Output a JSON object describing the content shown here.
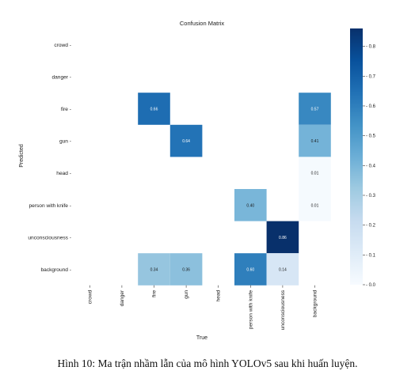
{
  "chart_data": {
    "type": "heatmap",
    "title": "Confusion Matrix",
    "xlabel": "True",
    "ylabel": "Predicted",
    "x_categories": [
      "crowd",
      "danger",
      "fire",
      "gun",
      "head",
      "person with knife",
      "unconsciousness",
      "background"
    ],
    "y_categories": [
      "crowd",
      "danger",
      "fire",
      "gun",
      "head",
      "person with knife",
      "unconsciousness",
      "background"
    ],
    "cells": [
      {
        "row": "fire",
        "col": "fire",
        "value": 0.66,
        "label": "0.66"
      },
      {
        "row": "fire",
        "col": "background",
        "value": 0.57,
        "label": "0.57"
      },
      {
        "row": "gun",
        "col": "gun",
        "value": 0.64,
        "label": "0.64"
      },
      {
        "row": "gun",
        "col": "background",
        "value": 0.41,
        "label": "0.41"
      },
      {
        "row": "head",
        "col": "background",
        "value": 0.01,
        "label": "0.01"
      },
      {
        "row": "person with knife",
        "col": "person with knife",
        "value": 0.4,
        "label": "0.40"
      },
      {
        "row": "person with knife",
        "col": "background",
        "value": 0.01,
        "label": "0.01"
      },
      {
        "row": "unconsciousness",
        "col": "unconsciousness",
        "value": 0.86,
        "label": "0.86"
      },
      {
        "row": "background",
        "col": "fire",
        "value": 0.34,
        "label": "0.34"
      },
      {
        "row": "background",
        "col": "gun",
        "value": 0.36,
        "label": "0.36"
      },
      {
        "row": "background",
        "col": "person with knife",
        "value": 0.6,
        "label": "0.60"
      },
      {
        "row": "background",
        "col": "unconsciousness",
        "value": 0.14,
        "label": "0.14"
      }
    ],
    "colorbar": {
      "range": [
        0,
        0.86
      ],
      "ticks": [
        0.0,
        0.1,
        0.2,
        0.3,
        0.4,
        0.5,
        0.6,
        0.7,
        0.8
      ],
      "tick_labels": [
        "0.0",
        "0.1",
        "0.2",
        "0.3",
        "0.4",
        "0.5",
        "0.6",
        "0.7",
        "0.8"
      ],
      "colormap": "Blues"
    }
  },
  "caption": "Hình 10: Ma trận nhầm lẫn của mô hình YOLOv5 sau khi huấn luyện."
}
